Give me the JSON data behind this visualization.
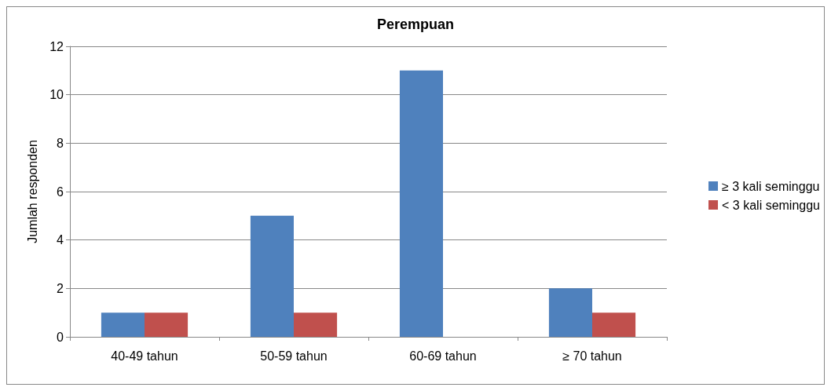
{
  "chart_data": {
    "type": "bar",
    "title": "Perempuan",
    "ylabel": "Jumlah responden",
    "categories": [
      "40-49 tahun",
      "50-59 tahun",
      "60-69 tahun",
      "≥ 70 tahun"
    ],
    "series": [
      {
        "name": "≥ 3 kali seminggu",
        "color": "#4f81bd",
        "values": [
          1,
          5,
          11,
          2
        ]
      },
      {
        "name": "< 3 kali seminggu",
        "color": "#c0504d",
        "values": [
          1,
          1,
          0,
          1
        ]
      }
    ],
    "ylim": [
      0,
      12
    ],
    "yticks": [
      0,
      2,
      4,
      6,
      8,
      10,
      12
    ],
    "grid": "y",
    "legend": "right"
  }
}
